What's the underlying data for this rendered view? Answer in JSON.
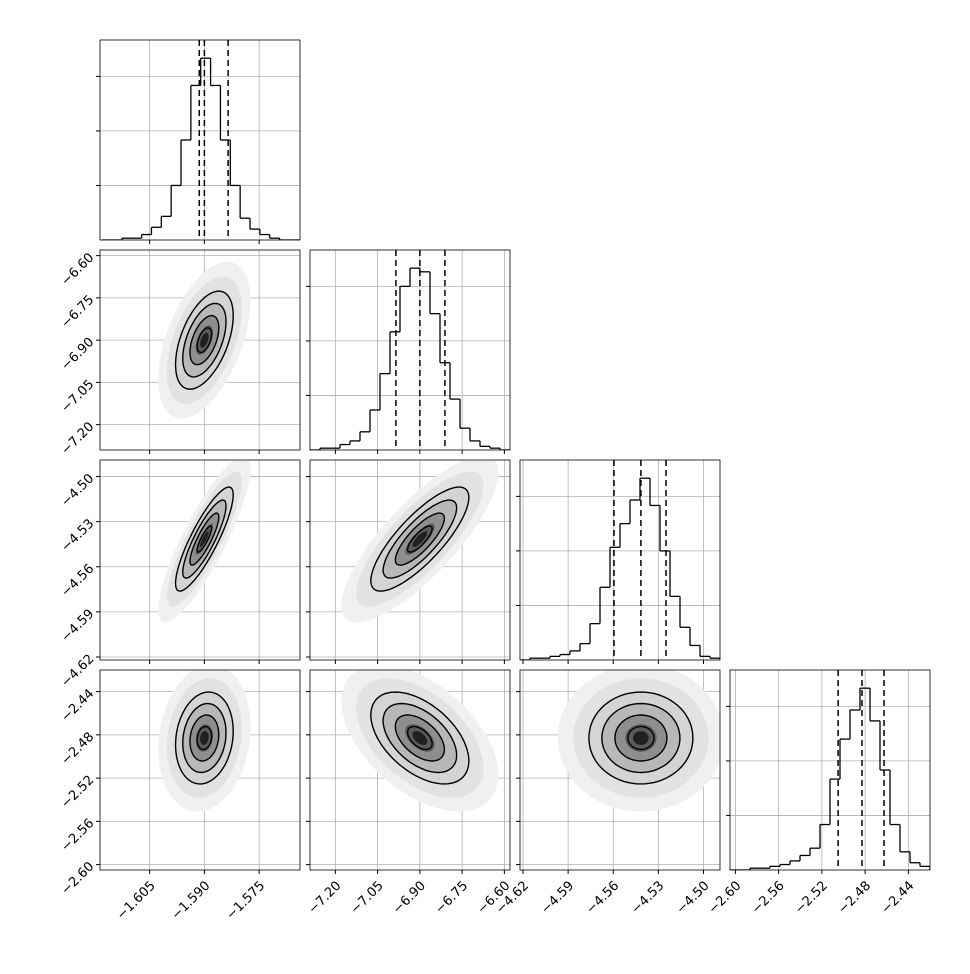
{
  "chart_data": {
    "type": "corner",
    "color": "#000000",
    "grid": true,
    "hist_ylim": [
      0,
      110
    ],
    "hist_yticks": [
      30,
      60,
      90
    ],
    "contour_levels": [
      0.5,
      1,
      1.5,
      2
    ],
    "params": [
      {
        "lim": [
          -1.6186,
          -1.5638
        ],
        "ticks": [
          {
            "value": -1.605,
            "label": "−1.605"
          },
          {
            "value": -1.59,
            "label": "−1.590"
          },
          {
            "value": -1.575,
            "label": "−1.575"
          }
        ],
        "quantiles": [
          -1.5914,
          -1.59,
          -1.5835
        ],
        "bins": [
          -1.618,
          -1.6153,
          -1.6126,
          -1.6099,
          -1.6072,
          -1.6045,
          -1.6018,
          -1.5991,
          -1.5964,
          -1.5937,
          -1.591,
          -1.5883,
          -1.5856,
          -1.5829,
          -1.5802,
          -1.5775,
          -1.5748,
          -1.5721,
          -1.5694,
          -1.5667,
          -1.564
        ],
        "counts": [
          0,
          0,
          1,
          1,
          3,
          7,
          13,
          30,
          55,
          85,
          100,
          85,
          55,
          30,
          12,
          6,
          3,
          1,
          0,
          0
        ]
      },
      {
        "lim": [
          -7.29,
          -6.58
        ],
        "ticks": [
          {
            "value": -7.2,
            "label": "−7.20"
          },
          {
            "value": -7.05,
            "label": "−7.05"
          },
          {
            "value": -6.9,
            "label": "−6.90"
          },
          {
            "value": -6.75,
            "label": "−6.75"
          },
          {
            "value": -6.6,
            "label": "−6.60"
          }
        ],
        "quantiles": [
          -6.985,
          -6.9,
          -6.811
        ],
        "bins": [
          -7.29,
          -7.2545,
          -7.219,
          -7.1835,
          -7.148,
          -7.1125,
          -7.077,
          -7.0415,
          -7.006,
          -6.9705,
          -6.935,
          -6.8995,
          -6.864,
          -6.8285,
          -6.793,
          -6.7575,
          -6.722,
          -6.6865,
          -6.651,
          -6.6155,
          -6.58
        ],
        "counts": [
          0,
          1,
          1,
          3,
          5,
          10,
          22,
          42,
          65,
          90,
          100,
          98,
          75,
          48,
          28,
          12,
          5,
          2,
          1,
          0
        ]
      },
      {
        "lim": [
          -4.622,
          -4.489
        ],
        "ticks": [
          {
            "value": -4.62,
            "label": "−4.62"
          },
          {
            "value": -4.59,
            "label": "−4.59"
          },
          {
            "value": -4.56,
            "label": "−4.56"
          },
          {
            "value": -4.53,
            "label": "−4.53"
          },
          {
            "value": -4.5,
            "label": "−4.50"
          }
        ],
        "quantiles": [
          -4.5595,
          -4.5416,
          -4.5249
        ],
        "bins": [
          -4.622,
          -4.61535,
          -4.6087,
          -4.60205,
          -4.5954,
          -4.58875,
          -4.5821,
          -4.57545,
          -4.5688,
          -4.56215,
          -4.5555,
          -4.54885,
          -4.5422,
          -4.53555,
          -4.5289,
          -4.52225,
          -4.5156,
          -4.50895,
          -4.5023,
          -4.49565,
          -4.489
        ],
        "counts": [
          0,
          1,
          1,
          2,
          3,
          5,
          9,
          20,
          40,
          62,
          75,
          88,
          100,
          85,
          60,
          35,
          18,
          8,
          2,
          1
        ]
      },
      {
        "lim": [
          -2.605,
          -2.42
        ],
        "ticks": [
          {
            "value": -2.6,
            "label": "−2.60"
          },
          {
            "value": -2.56,
            "label": "−2.56"
          },
          {
            "value": -2.52,
            "label": "−2.52"
          },
          {
            "value": -2.48,
            "label": "−2.48"
          },
          {
            "value": -2.44,
            "label": "−2.44"
          }
        ],
        "quantiles": [
          -2.505,
          -2.4829,
          -2.4625
        ],
        "bins": [
          -2.605,
          -2.59575,
          -2.5865,
          -2.57725,
          -2.568,
          -2.55875,
          -2.5495,
          -2.54025,
          -2.531,
          -2.52175,
          -2.5125,
          -2.50325,
          -2.494,
          -2.48475,
          -2.4755,
          -2.46625,
          -2.457,
          -2.44775,
          -2.4385,
          -2.42925,
          -2.42
        ],
        "counts": [
          0,
          0,
          1,
          1,
          2,
          3,
          5,
          8,
          12,
          25,
          50,
          72,
          88,
          100,
          82,
          55,
          25,
          10,
          4,
          2
        ]
      }
    ],
    "pairs": [
      {
        "x": 0,
        "y": 1,
        "correlation": 0.5
      },
      {
        "x": 0,
        "y": 2,
        "correlation": 0.85
      },
      {
        "x": 1,
        "y": 2,
        "correlation": 0.8
      },
      {
        "x": 0,
        "y": 3,
        "correlation": 0.15
      },
      {
        "x": 1,
        "y": 3,
        "correlation": -0.5
      },
      {
        "x": 2,
        "y": 3,
        "correlation": 0.0
      }
    ]
  }
}
